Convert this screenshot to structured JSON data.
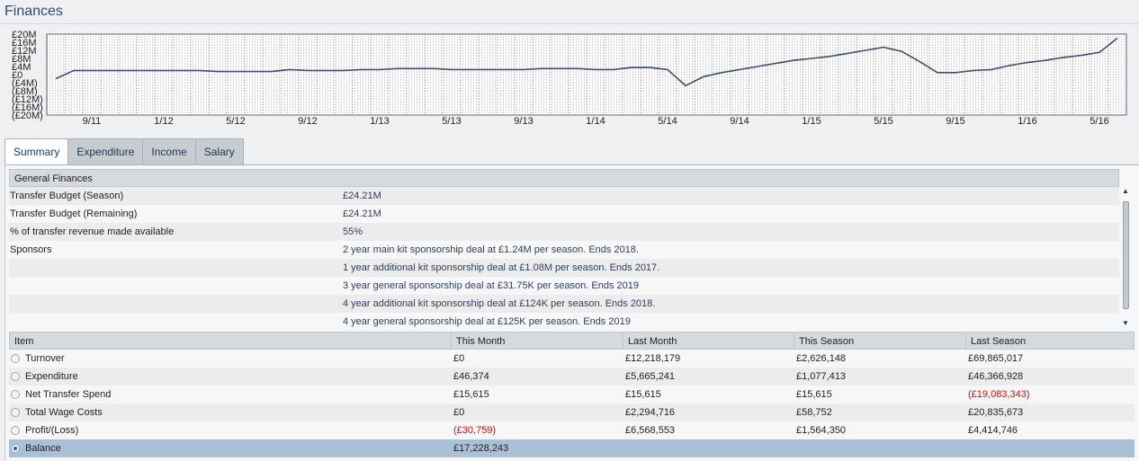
{
  "page": {
    "title": "Finances"
  },
  "colors": {
    "line": "#3b4f6e",
    "negative": "#cc1010",
    "selected_row": "#a9c0d6",
    "accent_text": "#2f4a6e"
  },
  "chart_data": {
    "type": "line",
    "y_ticks": [
      "£20M",
      "£16M",
      "£12M",
      "£8M",
      "£4M",
      "£0",
      "(£4M)",
      "(£8M)",
      "(£12M)",
      "(£16M)",
      "(£20M)"
    ],
    "ylim": [
      -20000000,
      20000000
    ],
    "x_ticks": [
      "9/11",
      "1/12",
      "5/12",
      "9/12",
      "1/13",
      "5/13",
      "9/13",
      "1/14",
      "5/14",
      "9/14",
      "1/15",
      "5/15",
      "9/15",
      "1/16",
      "5/16"
    ],
    "grid": true,
    "series": [
      {
        "points": [
          [
            "7/11",
            -2000000
          ],
          [
            "8/11",
            2000000
          ],
          [
            "9/11",
            2000000
          ],
          [
            "10/11",
            2000000
          ],
          [
            "11/11",
            2000000
          ],
          [
            "12/11",
            2000000
          ],
          [
            "1/12",
            2000000
          ],
          [
            "2/12",
            2000000
          ],
          [
            "3/12",
            2000000
          ],
          [
            "4/12",
            1500000
          ],
          [
            "5/12",
            1500000
          ],
          [
            "6/12",
            1500000
          ],
          [
            "7/12",
            1500000
          ],
          [
            "8/12",
            2500000
          ],
          [
            "9/12",
            2000000
          ],
          [
            "10/12",
            2000000
          ],
          [
            "11/12",
            2000000
          ],
          [
            "12/12",
            2500000
          ],
          [
            "1/13",
            2500000
          ],
          [
            "2/13",
            3000000
          ],
          [
            "3/13",
            3000000
          ],
          [
            "4/13",
            3000000
          ],
          [
            "5/13",
            2500000
          ],
          [
            "6/13",
            2500000
          ],
          [
            "7/13",
            2500000
          ],
          [
            "8/13",
            2500000
          ],
          [
            "9/13",
            2500000
          ],
          [
            "10/13",
            3000000
          ],
          [
            "11/13",
            3000000
          ],
          [
            "12/13",
            3000000
          ],
          [
            "1/14",
            2500000
          ],
          [
            "2/14",
            2500000
          ],
          [
            "3/14",
            3500000
          ],
          [
            "4/14",
            3500000
          ],
          [
            "5/14",
            2500000
          ],
          [
            "6/14",
            -5500000
          ],
          [
            "7/14",
            -1000000
          ],
          [
            "8/14",
            1000000
          ],
          [
            "9/14",
            2500000
          ],
          [
            "10/14",
            4000000
          ],
          [
            "11/14",
            5500000
          ],
          [
            "12/14",
            7000000
          ],
          [
            "1/15",
            8000000
          ],
          [
            "2/15",
            9000000
          ],
          [
            "3/15",
            10500000
          ],
          [
            "4/15",
            12000000
          ],
          [
            "5/15",
            13500000
          ],
          [
            "6/15",
            11500000
          ],
          [
            "7/15",
            6500000
          ],
          [
            "8/15",
            1000000
          ],
          [
            "9/15",
            1000000
          ],
          [
            "10/15",
            2000000
          ],
          [
            "11/15",
            2500000
          ],
          [
            "12/15",
            4500000
          ],
          [
            "1/16",
            6000000
          ],
          [
            "2/16",
            7000000
          ],
          [
            "3/16",
            8500000
          ],
          [
            "4/16",
            9500000
          ],
          [
            "5/16",
            11000000
          ],
          [
            "6/16",
            18000000
          ]
        ]
      }
    ]
  },
  "tabs": [
    {
      "label": "Summary",
      "active": true
    },
    {
      "label": "Expenditure",
      "active": false
    },
    {
      "label": "Income",
      "active": false
    },
    {
      "label": "Salary",
      "active": false
    }
  ],
  "general_finances": {
    "header": "General Finances",
    "rows": [
      {
        "label": "Transfer Budget (Season)",
        "value": "£24.21M"
      },
      {
        "label": "Transfer Budget (Remaining)",
        "value": "£24.21M"
      },
      {
        "label": "% of transfer revenue made available",
        "value": "55%"
      },
      {
        "label": "Sponsors",
        "value": "2 year main kit sponsorship deal at £1.24M per season. Ends 2018."
      },
      {
        "label": "",
        "value": "1 year additional kit sponsorship deal at £1.08M per season. Ends 2017."
      },
      {
        "label": "",
        "value": "3 year general sponsorship deal at £31.75K per season. Ends 2019"
      },
      {
        "label": "",
        "value": "4 year additional kit sponsorship deal at £124K per season. Ends 2018."
      },
      {
        "label": "",
        "value": "4 year general sponsorship deal at £125K per season. Ends 2019"
      }
    ]
  },
  "summary_table": {
    "headers": [
      "Item",
      "This Month",
      "Last Month",
      "This Season",
      "Last Season"
    ],
    "rows": [
      {
        "cells": [
          "Turnover",
          "£0",
          "£12,218,179",
          "£2,626,148",
          "£69,865,017"
        ],
        "negative": [],
        "selected": false
      },
      {
        "cells": [
          "Expenditure",
          "£46,374",
          "£5,665,241",
          "£1,077,413",
          "£46,366,928"
        ],
        "negative": [],
        "selected": false
      },
      {
        "cells": [
          "Net Transfer Spend",
          "£15,615",
          "£15,615",
          "£15,615",
          "(£19,083,343)"
        ],
        "negative": [
          4
        ],
        "selected": false
      },
      {
        "cells": [
          "Total Wage Costs",
          "£0",
          "£2,294,716",
          "£58,752",
          "£20,835,673"
        ],
        "negative": [],
        "selected": false
      },
      {
        "cells": [
          "Profit/(Loss)",
          "(£30,759)",
          "£6,568,553",
          "£1,564,350",
          "£4,414,746"
        ],
        "negative": [
          1
        ],
        "selected": false
      },
      {
        "cells": [
          "Balance",
          "£17,228,243",
          "",
          "",
          ""
        ],
        "negative": [],
        "selected": true
      }
    ]
  }
}
